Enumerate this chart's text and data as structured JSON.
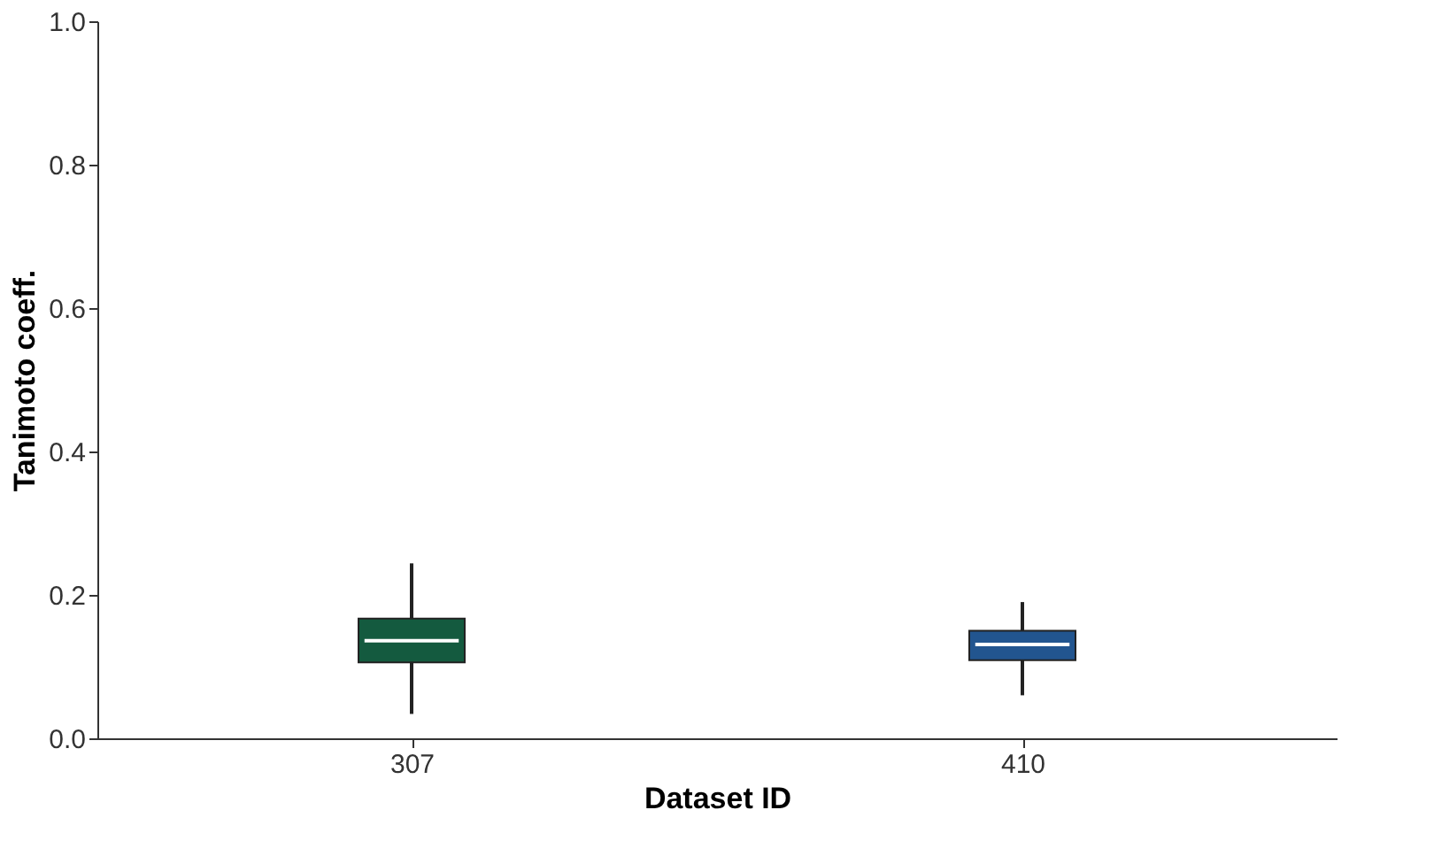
{
  "chart_data": {
    "type": "box",
    "xlabel": "Dataset ID",
    "ylabel": "Tanimoto coeff.",
    "categories": [
      "307",
      "410"
    ],
    "colors": [
      "#145a3f",
      "#22558f"
    ],
    "boxes": [
      {
        "low": 0.034,
        "q1": 0.106,
        "median": 0.136,
        "q3": 0.167,
        "high": 0.244
      },
      {
        "low": 0.06,
        "q1": 0.109,
        "median": 0.131,
        "q3": 0.15,
        "high": 0.19
      }
    ],
    "ylim": [
      0,
      1
    ],
    "yticks": [
      {
        "value": 0,
        "label": "0.0"
      },
      0.2,
      0.4,
      0.6,
      0.8,
      {
        "value": 1,
        "label": "1.0"
      }
    ],
    "grid": false
  }
}
